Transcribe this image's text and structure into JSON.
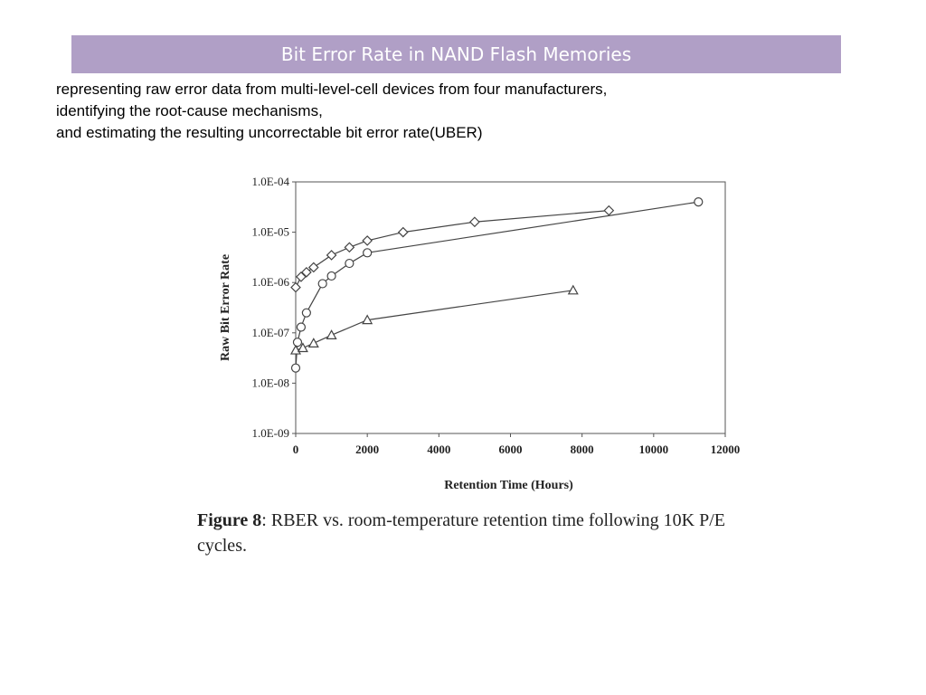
{
  "slide": {
    "title": "Bit Error Rate in NAND Flash Memories",
    "lines": [
      "representing raw error data from multi-level-cell devices from four manufacturers,",
      "identifying the root-cause mechanisms,",
      "and estimating the resulting uncorrectable bit error rate(UBER)"
    ]
  },
  "colors": {
    "title_bar": "#b09fc6",
    "title_text": "#ffffff",
    "series": "#444444"
  },
  "figure": {
    "label": "Figure 8",
    "text": ":  RBER vs. room-temperature retention time following 10K P/E cycles."
  },
  "chart_data": {
    "type": "line",
    "xlabel": "Retention Time (Hours)",
    "ylabel": "Raw Bit Error Rate",
    "xlim": [
      0,
      12000
    ],
    "ylim": [
      1e-09,
      0.0001
    ],
    "yscale": "log",
    "x_ticks": [
      "0",
      "2000",
      "4000",
      "6000",
      "8000",
      "10000",
      "12000"
    ],
    "y_ticks": [
      "1.0E-09",
      "1.0E-08",
      "1.0E-07",
      "1.0E-06",
      "1.0E-05",
      "1.0E-04"
    ],
    "grid": false,
    "legend": "none",
    "series": [
      {
        "marker": "diamond",
        "points": [
          [
            0,
            8e-07
          ],
          [
            150,
            1.3e-06
          ],
          [
            300,
            1.6e-06
          ],
          [
            500,
            2e-06
          ],
          [
            1000,
            3.5e-06
          ],
          [
            1500,
            5e-06
          ],
          [
            2000,
            6.8e-06
          ],
          [
            3000,
            1e-05
          ],
          [
            5000,
            1.6e-05
          ],
          [
            8750,
            2.7e-05
          ]
        ]
      },
      {
        "marker": "circle",
        "points": [
          [
            0,
            2e-08
          ],
          [
            50,
            6.5e-08
          ],
          [
            150,
            1.3e-07
          ],
          [
            300,
            2.5e-07
          ],
          [
            750,
            9.5e-07
          ],
          [
            1000,
            1.35e-06
          ],
          [
            1500,
            2.4e-06
          ],
          [
            2000,
            3.9e-06
          ],
          [
            11250,
            4e-05
          ]
        ]
      },
      {
        "marker": "triangle",
        "points": [
          [
            0,
            4.5e-08
          ],
          [
            200,
            5e-08
          ],
          [
            500,
            6.2e-08
          ],
          [
            1000,
            9e-08
          ],
          [
            2000,
            1.8e-07
          ],
          [
            7750,
            7e-07
          ]
        ]
      }
    ]
  }
}
